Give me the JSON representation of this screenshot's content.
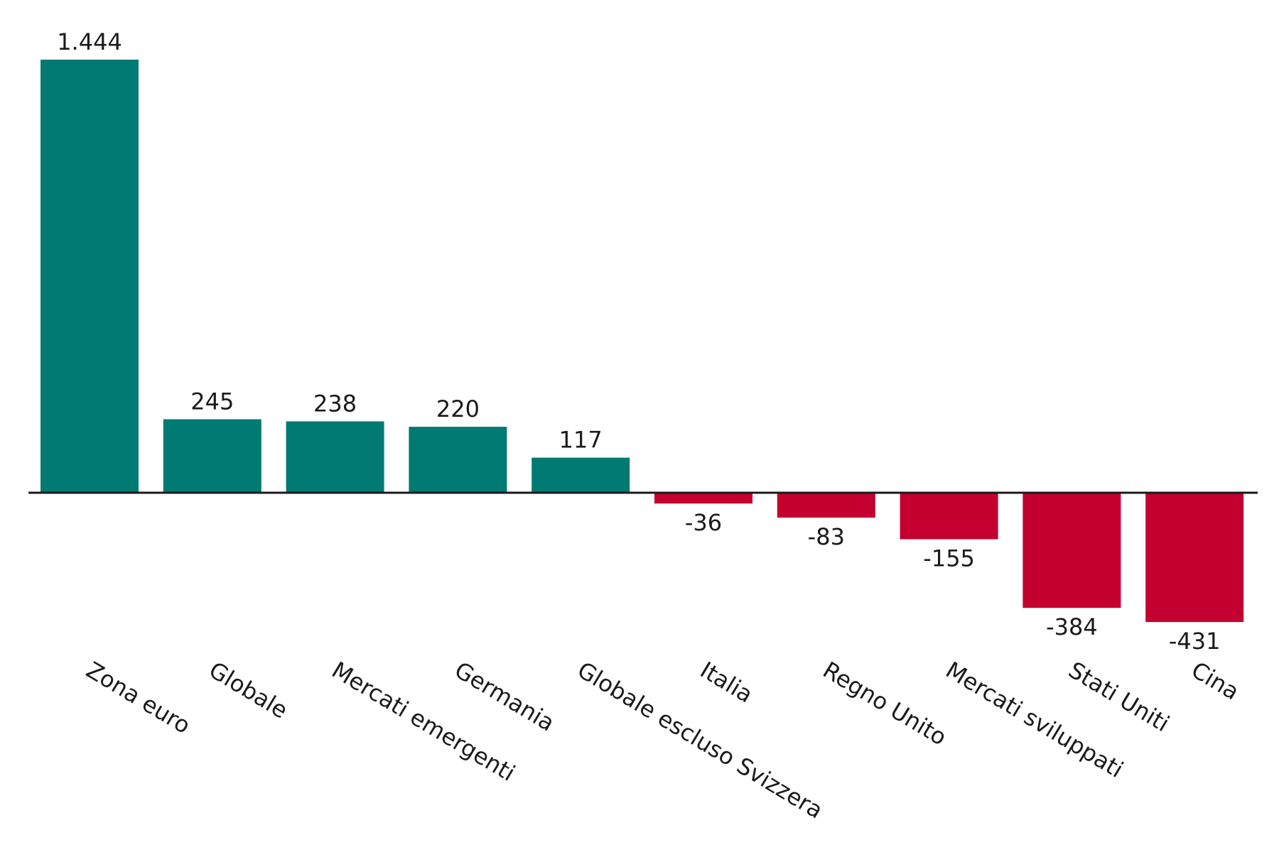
{
  "chart_data": {
    "type": "bar",
    "categories": [
      "Zona euro",
      "Globale",
      "Mercati emergenti",
      "Germania",
      "Globale escluso Svizzera",
      "Italia",
      "Regno Unito",
      "Mercati sviluppati",
      "Stati Uniti",
      "Cina"
    ],
    "values": [
      1444,
      245,
      238,
      220,
      117,
      -36,
      -83,
      -155,
      -384,
      -431
    ],
    "value_labels": [
      "1.444",
      "245",
      "238",
      "220",
      "117",
      "-36",
      "-83",
      "-155",
      "-384",
      "-431"
    ],
    "title": "",
    "xlabel": "",
    "ylabel": "",
    "ylim": [
      -431,
      1444
    ],
    "grid": false,
    "legend": "none",
    "colors": {
      "positive": "#007A72",
      "negative": "#C3002F",
      "baseline": "#1a1a1a"
    }
  }
}
